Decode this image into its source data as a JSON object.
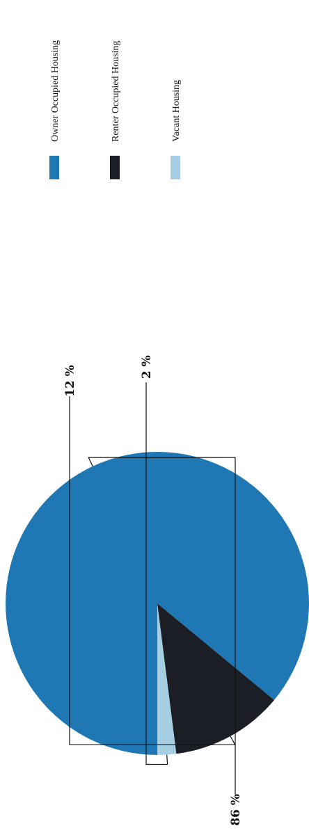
{
  "chart_data": {
    "type": "pie",
    "orientation": "rotated 90 degrees counter-clockwise",
    "legend_position": "right",
    "slices": [
      {
        "label": "Owner Occupied Housing",
        "value": 86,
        "display": "86 %",
        "color": "#1f78b4"
      },
      {
        "label": "Renter Occupied Housing",
        "value": 12,
        "display": "12 %",
        "color": "#1b1e24"
      },
      {
        "label": "Vacant Housing",
        "value": 2,
        "display": "2 %",
        "color": "#a6cee3"
      }
    ]
  }
}
